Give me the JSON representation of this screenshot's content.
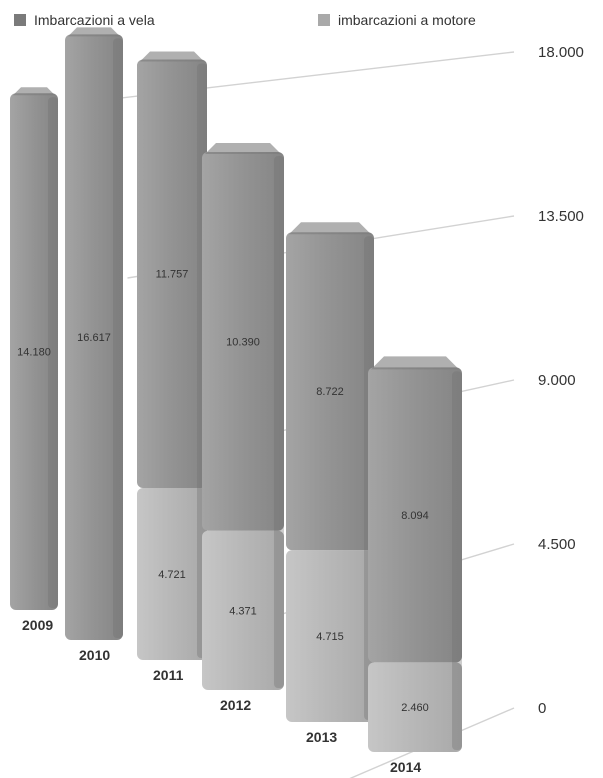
{
  "chart_data": {
    "type": "bar",
    "stacked": true,
    "categories": [
      "2009",
      "2010",
      "2011",
      "2012",
      "2013",
      "2014"
    ],
    "series": [
      {
        "name": "imbarcazioni a motore",
        "values": [
          null,
          null,
          4721,
          4371,
          4715,
          2460
        ],
        "color": "#b6b6b6"
      },
      {
        "name": "Imbarcazioni a vela",
        "values": [
          14180,
          16617,
          11757,
          10390,
          8722,
          8094
        ],
        "color": "#8e8e8e"
      }
    ],
    "data_labels": [
      [
        "",
        "",
        "4.721",
        "4.371",
        "4.715",
        "2.460"
      ],
      [
        "14.180",
        "16.617",
        "11.757",
        "10.390",
        "8.722",
        "8.094"
      ]
    ],
    "yticks": [
      0,
      4500,
      9000,
      13500,
      18000
    ],
    "ytick_labels": [
      "0",
      "4.500",
      "9.000",
      "13.500",
      "18.000"
    ],
    "ylim": [
      0,
      18000
    ],
    "legend": {
      "position": "top",
      "entries": [
        "Imbarcazioni a vela",
        "imbarcazioni a motore"
      ],
      "colors": [
        "#7a7a7a",
        "#a9a9a9"
      ]
    },
    "style": "3d-perspective"
  }
}
